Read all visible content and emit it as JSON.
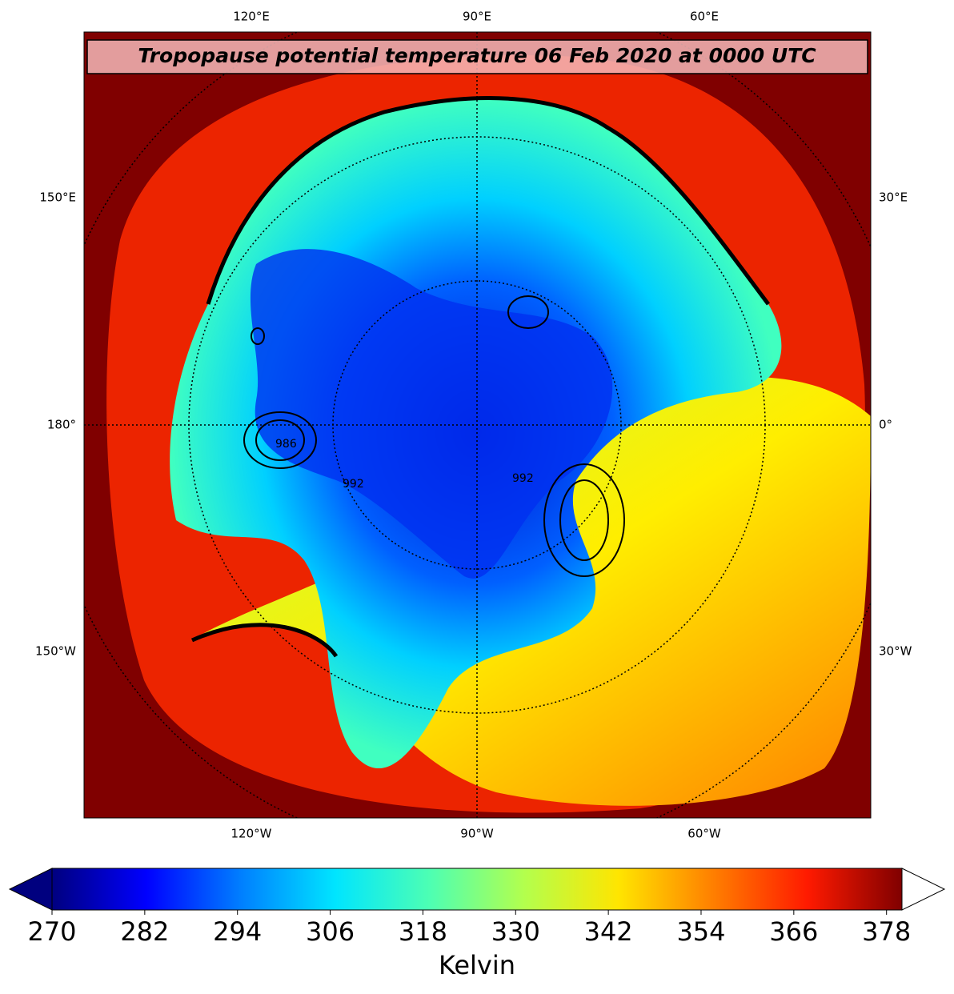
{
  "map": {
    "title": "Tropopause potential temperature 06 Feb 2020 at 0000 UTC",
    "labels": {
      "top": [
        "120°E",
        "90°E",
        "60°E"
      ],
      "left": [
        "150°E",
        "180°",
        "150°W"
      ],
      "right": [
        "30°E",
        "0°",
        "30°W"
      ],
      "bottom": [
        "120°W",
        "90°W",
        "60°W"
      ]
    },
    "contour_labels": [
      "986",
      "992",
      "992"
    ]
  },
  "colorbar": {
    "label": "Kelvin",
    "range": [
      270,
      380
    ],
    "ticks": [
      270,
      282,
      294,
      306,
      318,
      330,
      342,
      354,
      366,
      378
    ],
    "colors": [
      "#00007f",
      "#0000ff",
      "#007fff",
      "#00e5ff",
      "#4dffb3",
      "#b3ff4d",
      "#ffe500",
      "#ff7f00",
      "#ff1a00",
      "#800000"
    ],
    "extend": "both"
  }
}
